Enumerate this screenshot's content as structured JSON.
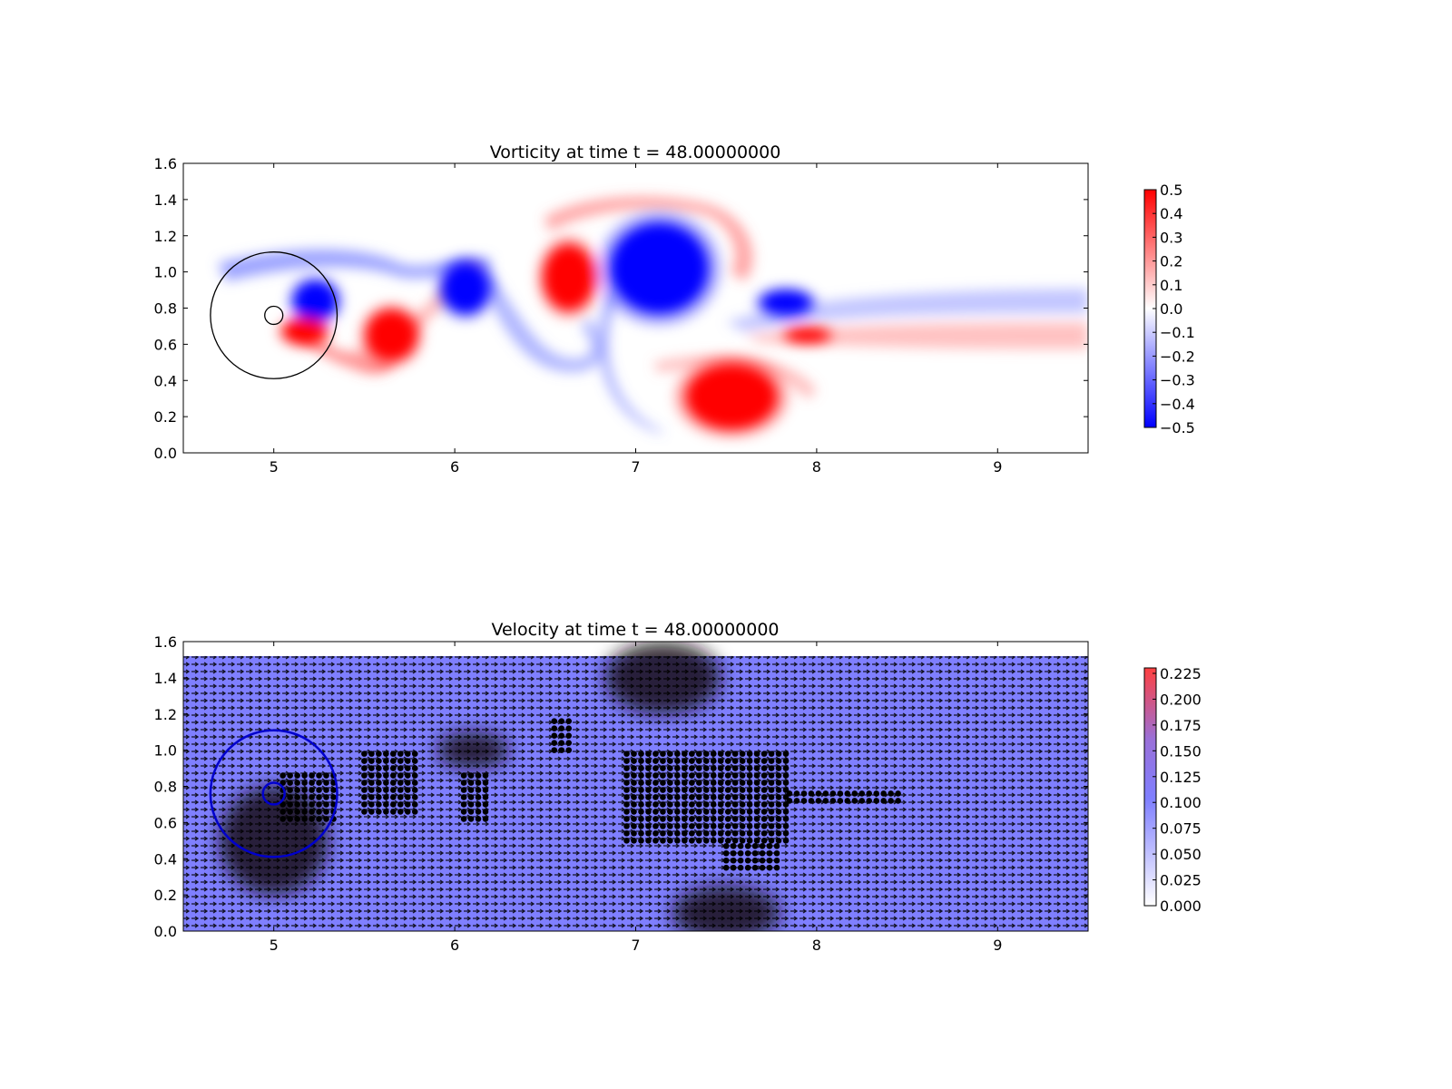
{
  "chart_data": [
    {
      "type": "heatmap",
      "title": "Vorticity at time t =    48.00000000",
      "xlabel": "",
      "ylabel": "",
      "xlim": [
        4.5,
        9.5
      ],
      "ylim": [
        0.0,
        1.6
      ],
      "x_ticks": [
        "5",
        "6",
        "7",
        "8",
        "9"
      ],
      "y_ticks": [
        "0.0",
        "0.2",
        "0.4",
        "0.6",
        "0.8",
        "1.0",
        "1.2",
        "1.4",
        "1.6"
      ],
      "grid": false,
      "colormap": "bwr",
      "clim": [
        -0.5,
        0.5
      ],
      "colorbar_ticks": [
        "0.5",
        "0.4",
        "0.3",
        "0.2",
        "0.1",
        "0.0",
        "−0.1",
        "−0.2",
        "−0.3",
        "−0.4",
        "−0.5"
      ],
      "colors": {
        "positive": "#ff0000",
        "negative": "#0000ff",
        "zero": "#ffffff"
      },
      "circles": [
        {
          "cx": 5.0,
          "cy": 0.76,
          "r": 0.35,
          "color": "#000000"
        },
        {
          "cx": 5.0,
          "cy": 0.76,
          "r": 0.05,
          "color": "#000000"
        }
      ],
      "vortices": [
        {
          "x": 5.23,
          "y": 0.84,
          "rx": 0.12,
          "ry": 0.11,
          "sign": -1
        },
        {
          "x": 5.17,
          "y": 0.67,
          "rx": 0.12,
          "ry": 0.07,
          "sign": 1
        },
        {
          "x": 5.65,
          "y": 0.65,
          "rx": 0.14,
          "ry": 0.14,
          "sign": 1
        },
        {
          "x": 6.06,
          "y": 0.91,
          "rx": 0.13,
          "ry": 0.14,
          "sign": -1
        },
        {
          "x": 6.63,
          "y": 0.97,
          "rx": 0.14,
          "ry": 0.18,
          "sign": 1
        },
        {
          "x": 7.13,
          "y": 1.02,
          "rx": 0.27,
          "ry": 0.25,
          "sign": -1
        },
        {
          "x": 7.53,
          "y": 0.31,
          "rx": 0.25,
          "ry": 0.18,
          "sign": 1
        },
        {
          "x": 7.83,
          "y": 0.83,
          "rx": 0.14,
          "ry": 0.07,
          "sign": -1
        },
        {
          "x": 7.95,
          "y": 0.65,
          "rx": 0.12,
          "ry": 0.04,
          "sign": 1
        }
      ]
    },
    {
      "type": "heatmap",
      "title": "Velocity at time t =    48.00000000",
      "xlabel": "",
      "ylabel": "",
      "xlim": [
        4.5,
        9.5
      ],
      "ylim": [
        0.0,
        1.6
      ],
      "x_ticks": [
        "5",
        "6",
        "7",
        "8",
        "9"
      ],
      "y_ticks": [
        "0.0",
        "0.2",
        "0.4",
        "0.6",
        "0.8",
        "1.0",
        "1.2",
        "1.4",
        "1.6"
      ],
      "grid": false,
      "field_top": 1.52,
      "colorbar_ticks": [
        "0.225",
        "0.200",
        "0.175",
        "0.150",
        "0.125",
        "0.100",
        "0.075",
        "0.050",
        "0.025",
        "0.000"
      ],
      "clim": [
        0.0,
        0.23
      ],
      "colors": {
        "low": "#ffffff",
        "mid": "#7f7fff",
        "high": "#ff4040",
        "arrows": "#000000"
      },
      "circles": [
        {
          "cx": 5.0,
          "cy": 0.76,
          "r": 0.35,
          "color": "#0000cc"
        },
        {
          "cx": 5.0,
          "cy": 0.76,
          "r": 0.06,
          "color": "#0000cc"
        }
      ],
      "dark_regions": [
        {
          "x": 7.15,
          "y": 1.4,
          "rx": 0.32,
          "ry": 0.2
        },
        {
          "x": 7.5,
          "y": 0.1,
          "rx": 0.3,
          "ry": 0.15
        },
        {
          "x": 6.1,
          "y": 1.0,
          "rx": 0.2,
          "ry": 0.1
        },
        {
          "x": 5.0,
          "y": 0.5,
          "rx": 0.3,
          "ry": 0.3
        }
      ],
      "marker_regions": [
        {
          "x": [
            5.05,
            5.35
          ],
          "y": [
            0.62,
            0.86
          ]
        },
        {
          "x": [
            5.5,
            5.8
          ],
          "y": [
            0.66,
            1.0
          ]
        },
        {
          "x": [
            6.05,
            6.2
          ],
          "y": [
            0.62,
            0.88
          ]
        },
        {
          "x": [
            6.55,
            6.65
          ],
          "y": [
            1.0,
            1.16
          ]
        },
        {
          "x": [
            6.95,
            7.85
          ],
          "y": [
            0.5,
            1.0
          ]
        },
        {
          "x": [
            7.5,
            7.8
          ],
          "y": [
            0.35,
            0.5
          ]
        },
        {
          "x": [
            7.85,
            8.45
          ],
          "y": [
            0.72,
            0.78
          ]
        }
      ]
    }
  ]
}
